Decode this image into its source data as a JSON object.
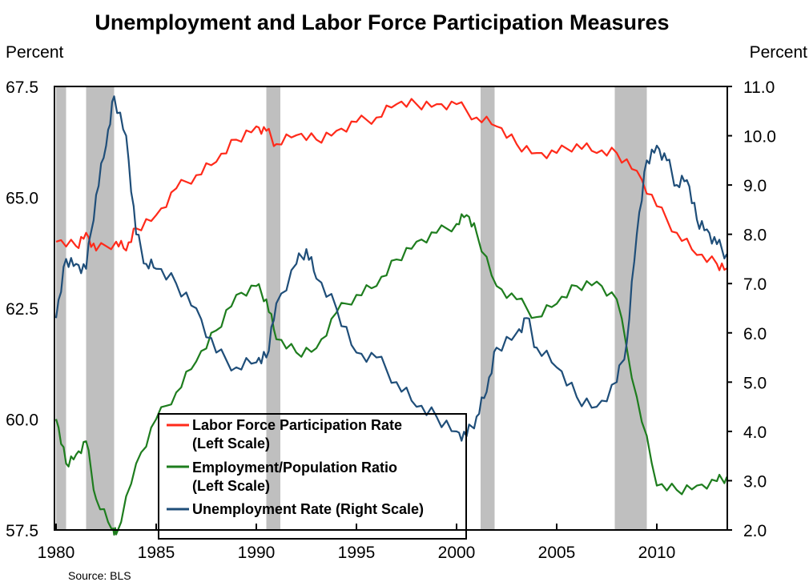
{
  "chart_data": {
    "type": "line",
    "title": "Unemployment and Labor Force Participation Measures",
    "left_axis_label": "Percent",
    "right_axis_label": "Percent",
    "source": "Source:  BLS",
    "xlim": [
      1980,
      2013.5
    ],
    "x_ticks": [
      1980,
      1985,
      1990,
      1995,
      2000,
      2005,
      2010
    ],
    "left_ylim": [
      57.5,
      67.5
    ],
    "left_ticks": [
      "57.5",
      "60.0",
      "62.5",
      "65.0",
      "67.5"
    ],
    "right_ylim": [
      2.0,
      11.0
    ],
    "right_ticks": [
      "2.0",
      "3.0",
      "4.0",
      "5.0",
      "6.0",
      "7.0",
      "8.0",
      "9.0",
      "10.0",
      "11.0"
    ],
    "grid": false,
    "legend_placement": "bottom-center",
    "recessions": [
      [
        1980.0,
        1980.5
      ],
      [
        1981.5,
        1982.9
      ],
      [
        1990.5,
        1991.2
      ],
      [
        2001.2,
        2001.9
      ],
      [
        2007.9,
        2009.5
      ]
    ],
    "recession_color": "#bfbfbf",
    "series": [
      {
        "name": "Labor Force Participation Rate",
        "name2": "(Left Scale)",
        "axis": "left",
        "color": "#ff2a1a",
        "x": [
          1980,
          1981,
          1981.5,
          1982,
          1983,
          1983.5,
          1984,
          1985,
          1986,
          1987,
          1988,
          1989,
          1990,
          1990.5,
          1991,
          1992,
          1993,
          1994,
          1995,
          1996,
          1997,
          1998,
          1999,
          2000,
          2001,
          2002,
          2003,
          2004,
          2005,
          2006,
          2007,
          2008,
          2009,
          2010,
          2011,
          2012,
          2013,
          2013.5
        ],
        "values": [
          64.0,
          63.9,
          64.2,
          63.8,
          64.0,
          63.8,
          64.3,
          64.6,
          65.2,
          65.5,
          65.8,
          66.3,
          66.6,
          66.5,
          66.2,
          66.4,
          66.3,
          66.5,
          66.7,
          66.8,
          67.1,
          67.1,
          67.1,
          67.1,
          66.8,
          66.6,
          66.2,
          66.0,
          66.0,
          66.2,
          66.0,
          66.0,
          65.6,
          64.8,
          64.2,
          63.7,
          63.5,
          63.4
        ]
      },
      {
        "name": "Employment/Population Ratio",
        "name2": "(Left Scale)",
        "axis": "left",
        "color": "#1e7d1e",
        "x": [
          1980,
          1980.5,
          1981,
          1981.5,
          1982,
          1982.8,
          1983,
          1984,
          1985,
          1986,
          1987,
          1988,
          1989,
          1990,
          1990.5,
          1991,
          1992,
          1993,
          1994,
          1995,
          1996,
          1997,
          1998,
          1999,
          2000,
          2000.5,
          2001,
          2002,
          2003,
          2004,
          2005,
          2006,
          2007,
          2008,
          2009,
          2010,
          2011,
          2012,
          2013,
          2013.5
        ],
        "values": [
          60.0,
          59.0,
          59.2,
          59.5,
          58.2,
          57.5,
          57.4,
          59.0,
          60.0,
          60.6,
          61.3,
          62.0,
          62.8,
          63.0,
          62.7,
          61.8,
          61.5,
          61.6,
          62.4,
          62.8,
          63.0,
          63.6,
          64.0,
          64.2,
          64.4,
          64.6,
          64.2,
          63.0,
          62.7,
          62.3,
          62.6,
          63.0,
          63.1,
          62.7,
          60.5,
          58.5,
          58.4,
          58.5,
          58.6,
          58.7
        ]
      },
      {
        "name": "Unemployment Rate (Right Scale)",
        "name2": "",
        "axis": "right",
        "color": "#1f4e79",
        "x": [
          1980,
          1980.5,
          1981,
          1981.5,
          1982,
          1982.5,
          1982.9,
          1983.5,
          1984,
          1984.5,
          1985,
          1986,
          1987,
          1988,
          1989,
          1990,
          1990.5,
          1991,
          1992,
          1992.5,
          1993,
          1994,
          1995,
          1996,
          1997,
          1998,
          1999,
          2000,
          2000.5,
          2001,
          2001.5,
          2002,
          2003,
          2003.5,
          2004,
          2005,
          2006,
          2007,
          2008,
          2008.5,
          2009,
          2009.5,
          2010,
          2010.5,
          2011,
          2011.5,
          2012,
          2012.5,
          2013,
          2013.5
        ],
        "values": [
          6.3,
          7.5,
          7.4,
          7.3,
          8.8,
          9.8,
          10.8,
          10.0,
          8.0,
          7.4,
          7.3,
          7.0,
          6.5,
          5.6,
          5.3,
          5.4,
          5.5,
          6.6,
          7.4,
          7.7,
          7.1,
          6.5,
          5.6,
          5.5,
          5.0,
          4.5,
          4.3,
          4.0,
          3.9,
          4.3,
          4.8,
          5.7,
          6.0,
          6.3,
          5.7,
          5.3,
          4.7,
          4.5,
          5.0,
          5.8,
          8.0,
          9.5,
          9.8,
          9.5,
          9.0,
          9.1,
          8.3,
          8.1,
          7.8,
          7.6
        ]
      }
    ]
  }
}
